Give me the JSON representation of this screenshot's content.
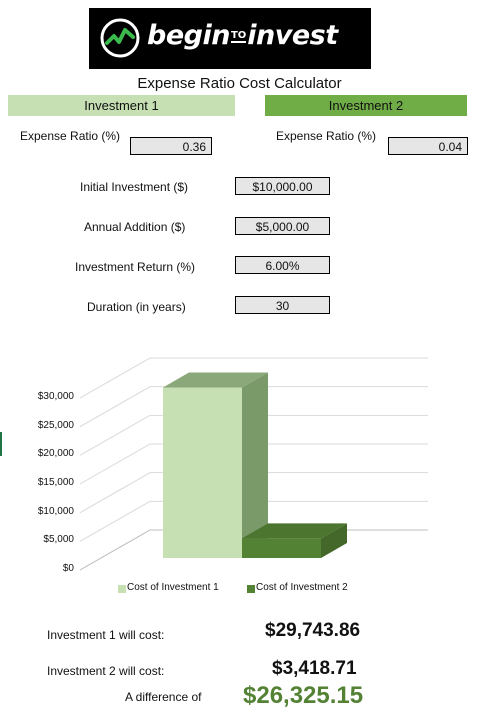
{
  "brand": {
    "logo_word_1": "begin",
    "logo_word_to": "TO",
    "logo_word_2": "invest",
    "logo_dark": "#000000",
    "logo_accent": "#3dba4e"
  },
  "title": "Expense Ratio Cost Calculator",
  "investment1": {
    "header": "Investment 1",
    "header_color": "#c6e0b4",
    "expense_ratio_label": "Expense Ratio (%)",
    "expense_ratio_value": "0.36"
  },
  "investment2": {
    "header": "Investment 2",
    "header_color": "#70ad47",
    "expense_ratio_label": "Expense Ratio (%)",
    "expense_ratio_value": "0.04"
  },
  "inputs": [
    {
      "label": "Initial Investment ($)",
      "value": "$10,000.00"
    },
    {
      "label": "Annual Addition ($)",
      "value": "$5,000.00"
    },
    {
      "label": "Investment Return (%)",
      "value": "6.00%"
    },
    {
      "label": "Duration (in years)",
      "value": "30"
    }
  ],
  "chart_data": {
    "type": "bar",
    "categories": [
      "Cost of Investment 1",
      "Cost of Investment 2"
    ],
    "values": [
      29743.86,
      3418.71
    ],
    "colors": [
      "#c6e0b4",
      "#548235"
    ],
    "ylim": [
      0,
      30000
    ],
    "yticks": [
      "$0",
      "$5,000",
      "$10,000",
      "$15,000",
      "$20,000",
      "$25,000",
      "$30,000"
    ],
    "legend": [
      "Cost of Investment 1",
      "Cost of Investment 2"
    ],
    "legend_position": "bottom",
    "grid": true,
    "style": "3d"
  },
  "results": {
    "inv1_label": "Investment 1 will cost:",
    "inv1_value": "$29,743.86",
    "inv2_label": "Investment 2 will cost:",
    "inv2_value": "$3,418.71",
    "diff_label": "A difference of",
    "diff_value": "$26,325.15",
    "diff_color": "#548235"
  }
}
